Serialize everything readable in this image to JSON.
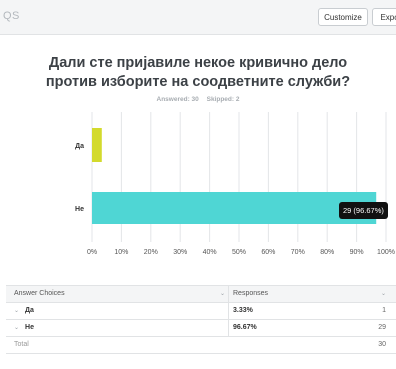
{
  "header": {
    "label": "QS",
    "customize_label": "Customize",
    "export_label": "Export"
  },
  "question": {
    "title_line1": "Дали сте пријавиле некое кривично дело",
    "title_line2": "против изборите на соодветните служби?",
    "answered": "Answered: 30",
    "skipped": "Skipped: 2"
  },
  "tooltip": "29 (96.67%)",
  "chart_data": {
    "type": "bar",
    "orientation": "horizontal",
    "categories": [
      "Да",
      "Не"
    ],
    "values": [
      3.33,
      96.67
    ],
    "counts": [
      1,
      29
    ],
    "colors": [
      "#d3da2d",
      "#4fd6d4"
    ],
    "xlim": [
      0,
      100
    ],
    "xticks": [
      "0%",
      "10%",
      "20%",
      "30%",
      "40%",
      "50%",
      "60%",
      "70%",
      "80%",
      "90%",
      "100%"
    ],
    "grid": true
  },
  "table": {
    "headers": [
      "Answer Choices",
      "Responses"
    ],
    "rows": [
      {
        "choice": "Да",
        "percent": "3.33%",
        "count": "1"
      },
      {
        "choice": "Не",
        "percent": "96.67%",
        "count": "29"
      }
    ],
    "total_label": "Total",
    "total_value": "30"
  }
}
